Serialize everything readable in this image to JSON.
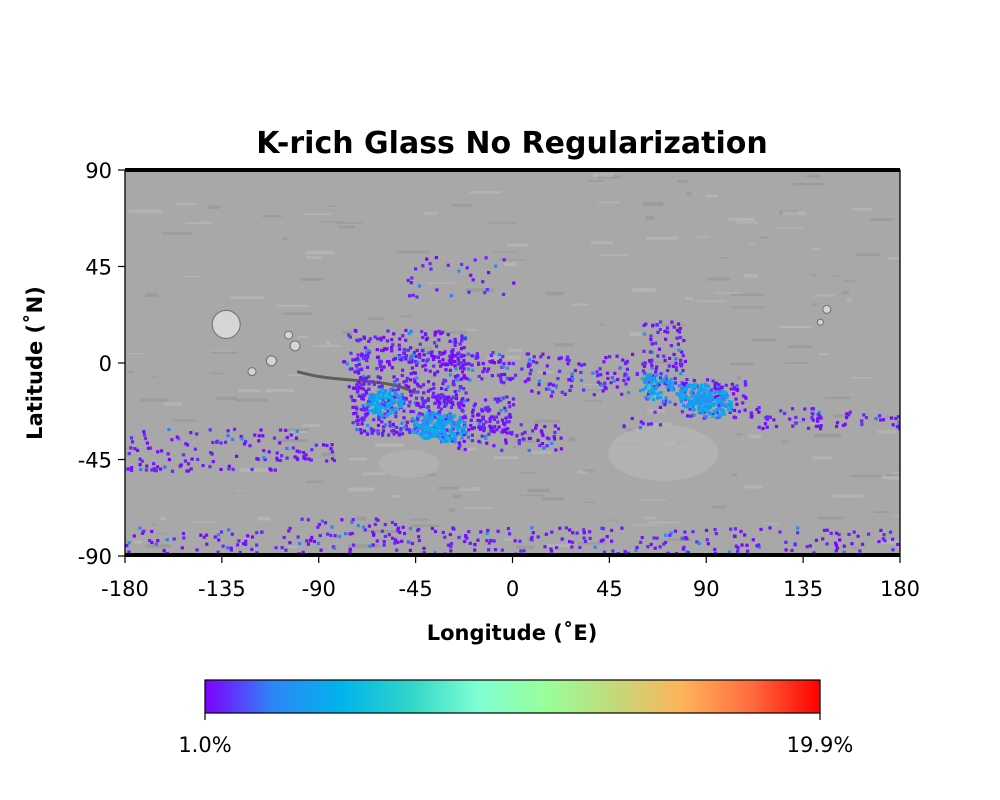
{
  "chart_data": {
    "type": "heatmap",
    "title": "K-rich Glass No Regularization",
    "xlabel": "Longitude (˚E)",
    "ylabel": "Latitude (˚N)",
    "xlim": [
      -180,
      180
    ],
    "ylim": [
      -90,
      90
    ],
    "xticks": [
      -180,
      -135,
      -90,
      -45,
      0,
      45,
      90,
      135,
      180
    ],
    "yticks": [
      90,
      45,
      0,
      -45,
      -90
    ],
    "xtick_labels": [
      "-180",
      "-135",
      "-90",
      "-45",
      "0",
      "45",
      "90",
      "135",
      "180"
    ],
    "ytick_labels": [
      "90",
      "45",
      "0",
      "-45",
      "-90"
    ],
    "colorbar": {
      "colormap": "rainbow",
      "min_label": "1.0%",
      "max_label": "19.9%",
      "min": 1.0,
      "max": 19.9,
      "colors": [
        "#7f00ff",
        "#2d87f6",
        "#00b4eb",
        "#30d5c8",
        "#7fffd4",
        "#99ff99",
        "#c3d97a",
        "#ffb35a",
        "#ff6b3f",
        "#ff0000"
      ]
    },
    "background": "grayscale shaded-relief basemap of Mars",
    "cells": [
      {
        "lon": -82,
        "lat": 0,
        "dlon": 78,
        "dlat": 6,
        "v": 0.12
      },
      {
        "lon": -77,
        "lat": -20,
        "dlon": 55,
        "dlat": 36,
        "v": 0.15
      },
      {
        "lon": -75,
        "lat": -33,
        "dlon": 75,
        "dlat": 18,
        "v": 0.2
      },
      {
        "lon": -30,
        "lat": -9,
        "dlon": 40,
        "dlat": 12,
        "v": 0.12
      },
      {
        "lon": -34,
        "lat": -40,
        "dlon": 56,
        "dlat": 12,
        "v": 0.1
      },
      {
        "lon": 5,
        "lat": -15,
        "dlon": 50,
        "dlat": 20,
        "v": 0.08
      },
      {
        "lon": 50,
        "lat": -30,
        "dlon": 20,
        "dlat": 8,
        "v": 0.06
      },
      {
        "lon": 50,
        "lat": -5,
        "dlon": 16,
        "dlat": 10,
        "v": 0.08
      },
      {
        "lon": 60,
        "lat": -20,
        "dlon": 20,
        "dlat": 40,
        "v": 0.12
      },
      {
        "lon": 78,
        "lat": -25,
        "dlon": 30,
        "dlat": 18,
        "v": 0.18
      },
      {
        "lon": 110,
        "lat": -30,
        "dlon": 35,
        "dlat": 10,
        "v": 0.12
      },
      {
        "lon": 145,
        "lat": -30,
        "dlon": 35,
        "dlat": 8,
        "v": 0.08
      },
      {
        "lon": -180,
        "lat": -50,
        "dlon": 80,
        "dlat": 20,
        "v": 0.06
      },
      {
        "lon": -120,
        "lat": -45,
        "dlon": 40,
        "dlat": 8,
        "v": 0.08
      },
      {
        "lon": -180,
        "lat": -90,
        "dlon": 360,
        "dlat": 14,
        "v": 0.06
      },
      {
        "lon": -100,
        "lat": -80,
        "dlon": 50,
        "dlat": 8,
        "v": 0.06
      },
      {
        "lon": -50,
        "lat": 30,
        "dlon": 50,
        "dlat": 20,
        "v": 0.03
      }
    ],
    "dense_cores": [
      {
        "lon": -60,
        "lat": -18,
        "v": 0.9
      },
      {
        "lon": -40,
        "lat": -28,
        "v": 0.85
      },
      {
        "lon": -30,
        "lat": -30,
        "v": 0.75
      },
      {
        "lon": 85,
        "lat": -15,
        "v": 0.8
      },
      {
        "lon": 93,
        "lat": -18,
        "v": 0.85
      },
      {
        "lon": 66,
        "lat": -10,
        "v": 0.5
      }
    ]
  }
}
